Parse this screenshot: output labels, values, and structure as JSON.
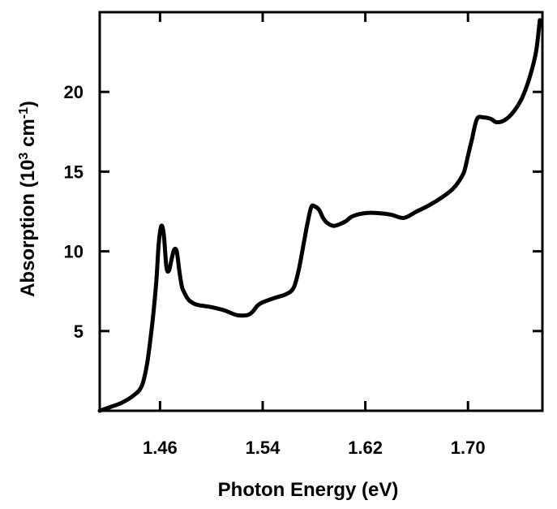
{
  "chart_data": {
    "type": "line",
    "title": "",
    "xlabel": "Photon Energy (eV)",
    "ylabel_parts": {
      "pre": "Absorption (10",
      "exp1": "3",
      "mid": " cm",
      "exp2": "-1",
      "post": ")"
    },
    "xlim": [
      1.413,
      1.758
    ],
    "ylim": [
      0,
      25
    ],
    "x_ticks": [
      1.46,
      1.54,
      1.62,
      1.7
    ],
    "x_tick_labels": [
      "1.46",
      "1.54",
      "1.62",
      "1.70"
    ],
    "y_ticks": [
      5,
      10,
      15,
      20
    ],
    "y_tick_labels": [
      "5",
      "10",
      "15",
      "20"
    ],
    "grid": false,
    "legend": "none",
    "line_color": "#000000",
    "series": [
      {
        "x": [
          1.413,
          1.42,
          1.43,
          1.44,
          1.446,
          1.45,
          1.454,
          1.457,
          1.459,
          1.461,
          1.463,
          1.465,
          1.467,
          1.469,
          1.471,
          1.473,
          1.475,
          1.477,
          1.479,
          1.481,
          1.483,
          1.487,
          1.492,
          1.5,
          1.51,
          1.52,
          1.528,
          1.532,
          1.536,
          1.54,
          1.55,
          1.558,
          1.564,
          1.568,
          1.572,
          1.575,
          1.578,
          1.581,
          1.584,
          1.587,
          1.59,
          1.595,
          1.6,
          1.605,
          1.61,
          1.62,
          1.63,
          1.64,
          1.65,
          1.66,
          1.67,
          1.68,
          1.688,
          1.693,
          1.697,
          1.7,
          1.703,
          1.707,
          1.712,
          1.718,
          1.722,
          1.728,
          1.735,
          1.742,
          1.748,
          1.753,
          1.756
        ],
        "y": [
          0.0,
          0.2,
          0.5,
          1.0,
          1.6,
          3.0,
          5.5,
          8.0,
          10.5,
          11.6,
          11.0,
          9.0,
          8.8,
          9.5,
          10.1,
          10.0,
          8.8,
          7.8,
          7.4,
          7.1,
          6.9,
          6.7,
          6.6,
          6.5,
          6.3,
          6.0,
          6.0,
          6.2,
          6.6,
          6.8,
          7.1,
          7.3,
          7.7,
          8.8,
          10.5,
          11.8,
          12.8,
          12.8,
          12.6,
          12.1,
          11.8,
          11.6,
          11.7,
          11.9,
          12.2,
          12.4,
          12.4,
          12.3,
          12.1,
          12.5,
          12.9,
          13.4,
          13.9,
          14.4,
          15.0,
          16.0,
          17.0,
          18.3,
          18.4,
          18.3,
          18.1,
          18.2,
          18.7,
          19.6,
          20.9,
          22.5,
          24.5
        ]
      }
    ]
  }
}
